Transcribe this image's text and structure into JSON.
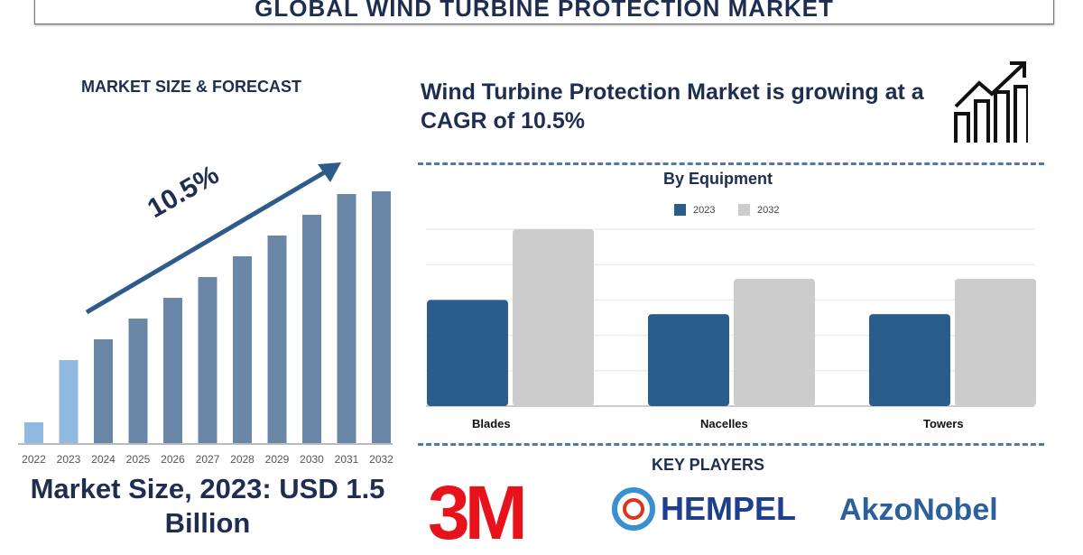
{
  "title": "GLOBAL WIND TURBINE PROTECTION MARKET",
  "left": {
    "heading": "MARKET SIZE & FORECAST",
    "cagr_label": "10.5%",
    "market_size": "Market Size, 2023: USD 1.5 Billion"
  },
  "right": {
    "headline": "Wind Turbine Protection Market is growing at a CAGR of 10.5%",
    "key_players_heading": "KEY PLAYERS",
    "players": [
      "3M",
      "HEMPEL",
      "AkzoNobel"
    ]
  },
  "colors": {
    "navy": "#1f2d50",
    "bar": "#6b87a8",
    "bar_highlight": "#8fb9e0",
    "series_2023": "#2a5d8c",
    "series_2032": "#cccccc",
    "logo_3m": "#e8121a",
    "hempel": "#1e3f8f",
    "akzo": "#2b5f9e"
  },
  "chart_data": [
    {
      "type": "bar",
      "title": "",
      "categories": [
        "2022",
        "2023",
        "2024",
        "2025",
        "2026",
        "2027",
        "2028",
        "2029",
        "2030",
        "2031",
        "2032"
      ],
      "values": [
        23,
        92,
        115,
        138,
        161,
        184,
        207,
        230,
        253,
        276,
        279
      ],
      "xlabel": "",
      "ylabel": "",
      "grid": false,
      "annotation": "10.5%"
    },
    {
      "type": "bar",
      "title": "By Equipment",
      "categories": [
        "Blades",
        "Nacelles",
        "Towers"
      ],
      "series": [
        {
          "name": "2023",
          "values": [
            3,
            2.6,
            2.6
          ]
        },
        {
          "name": "2032",
          "values": [
            5,
            3.6,
            3.6
          ]
        }
      ],
      "ylim": [
        0,
        5
      ],
      "grid": true,
      "legend": "top-center",
      "xlabel": "",
      "ylabel": ""
    }
  ]
}
